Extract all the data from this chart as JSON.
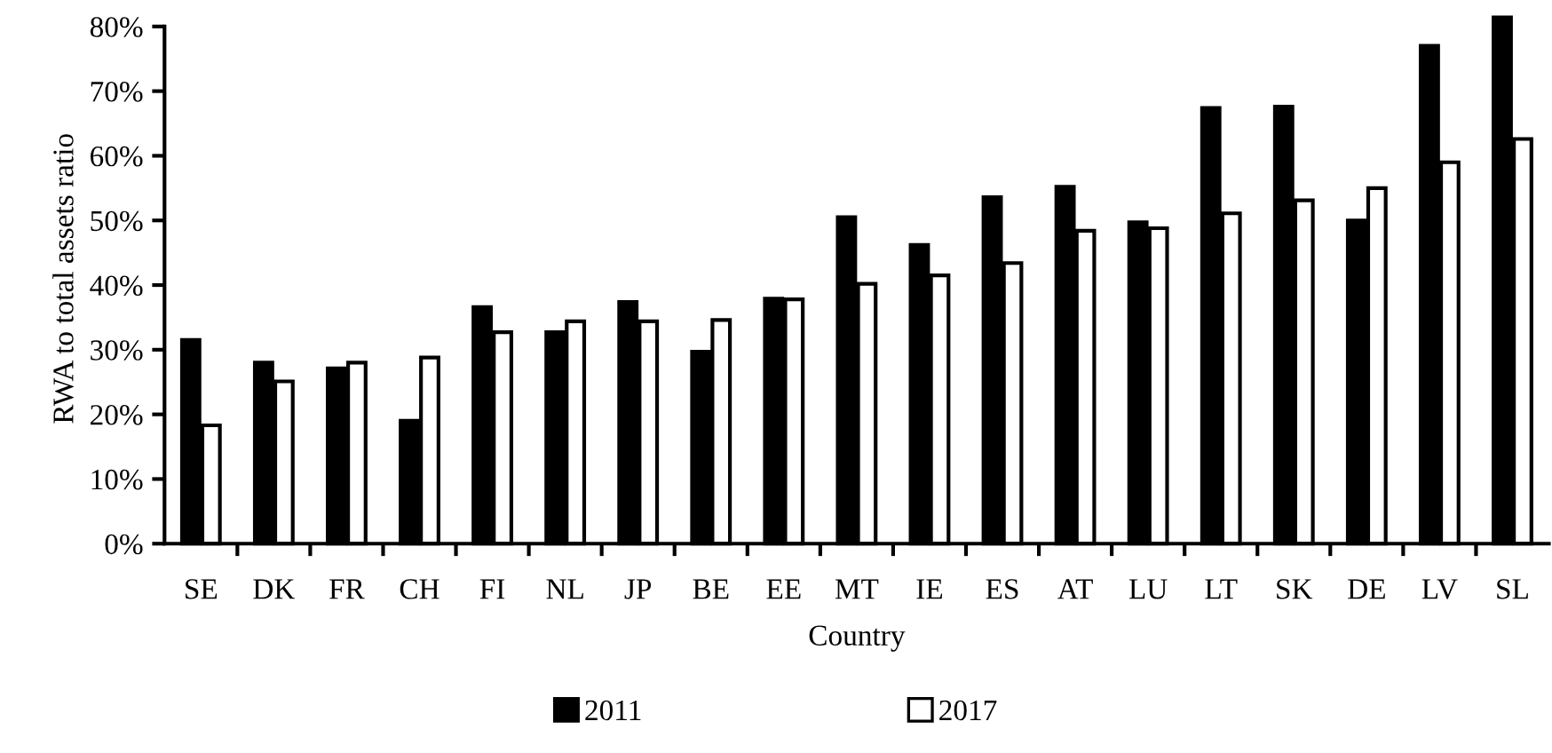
{
  "chart_data": {
    "type": "bar",
    "xlabel": "Country",
    "ylabel": "RWA to total assets ratio",
    "categories": [
      "SE",
      "DK",
      "FR",
      "CH",
      "FI",
      "NL",
      "JP",
      "BE",
      "EE",
      "MT",
      "IE",
      "ES",
      "AT",
      "LU",
      "LT",
      "SK",
      "DE",
      "LV",
      "SL"
    ],
    "series": [
      {
        "name": "2011",
        "color": "#000000",
        "values": [
          31.5,
          28.0,
          27.1,
          19.0,
          36.6,
          32.7,
          37.4,
          29.7,
          37.9,
          50.5,
          46.2,
          53.6,
          55.2,
          49.7,
          67.4,
          67.6,
          50.0,
          77.0,
          81.4
        ]
      },
      {
        "name": "2017",
        "color": "#ffffff",
        "values": [
          18.3,
          25.1,
          28.0,
          28.8,
          32.7,
          34.4,
          34.4,
          34.6,
          37.8,
          40.2,
          41.5,
          43.4,
          48.4,
          48.8,
          51.1,
          53.1,
          55.0,
          59.0,
          62.6
        ]
      }
    ],
    "ylim": [
      0,
      82
    ],
    "yticks": [
      {
        "value": 0,
        "label": "0%"
      },
      {
        "value": 10,
        "label": "10%"
      },
      {
        "value": 20,
        "label": "20%"
      },
      {
        "value": 30,
        "label": "30%"
      },
      {
        "value": 40,
        "label": "40%"
      },
      {
        "value": 50,
        "label": "50%"
      },
      {
        "value": 60,
        "label": "60%"
      },
      {
        "value": 70,
        "label": "70%"
      },
      {
        "value": 80,
        "label": "80%"
      }
    ],
    "grid": false,
    "legend": "bottom"
  }
}
